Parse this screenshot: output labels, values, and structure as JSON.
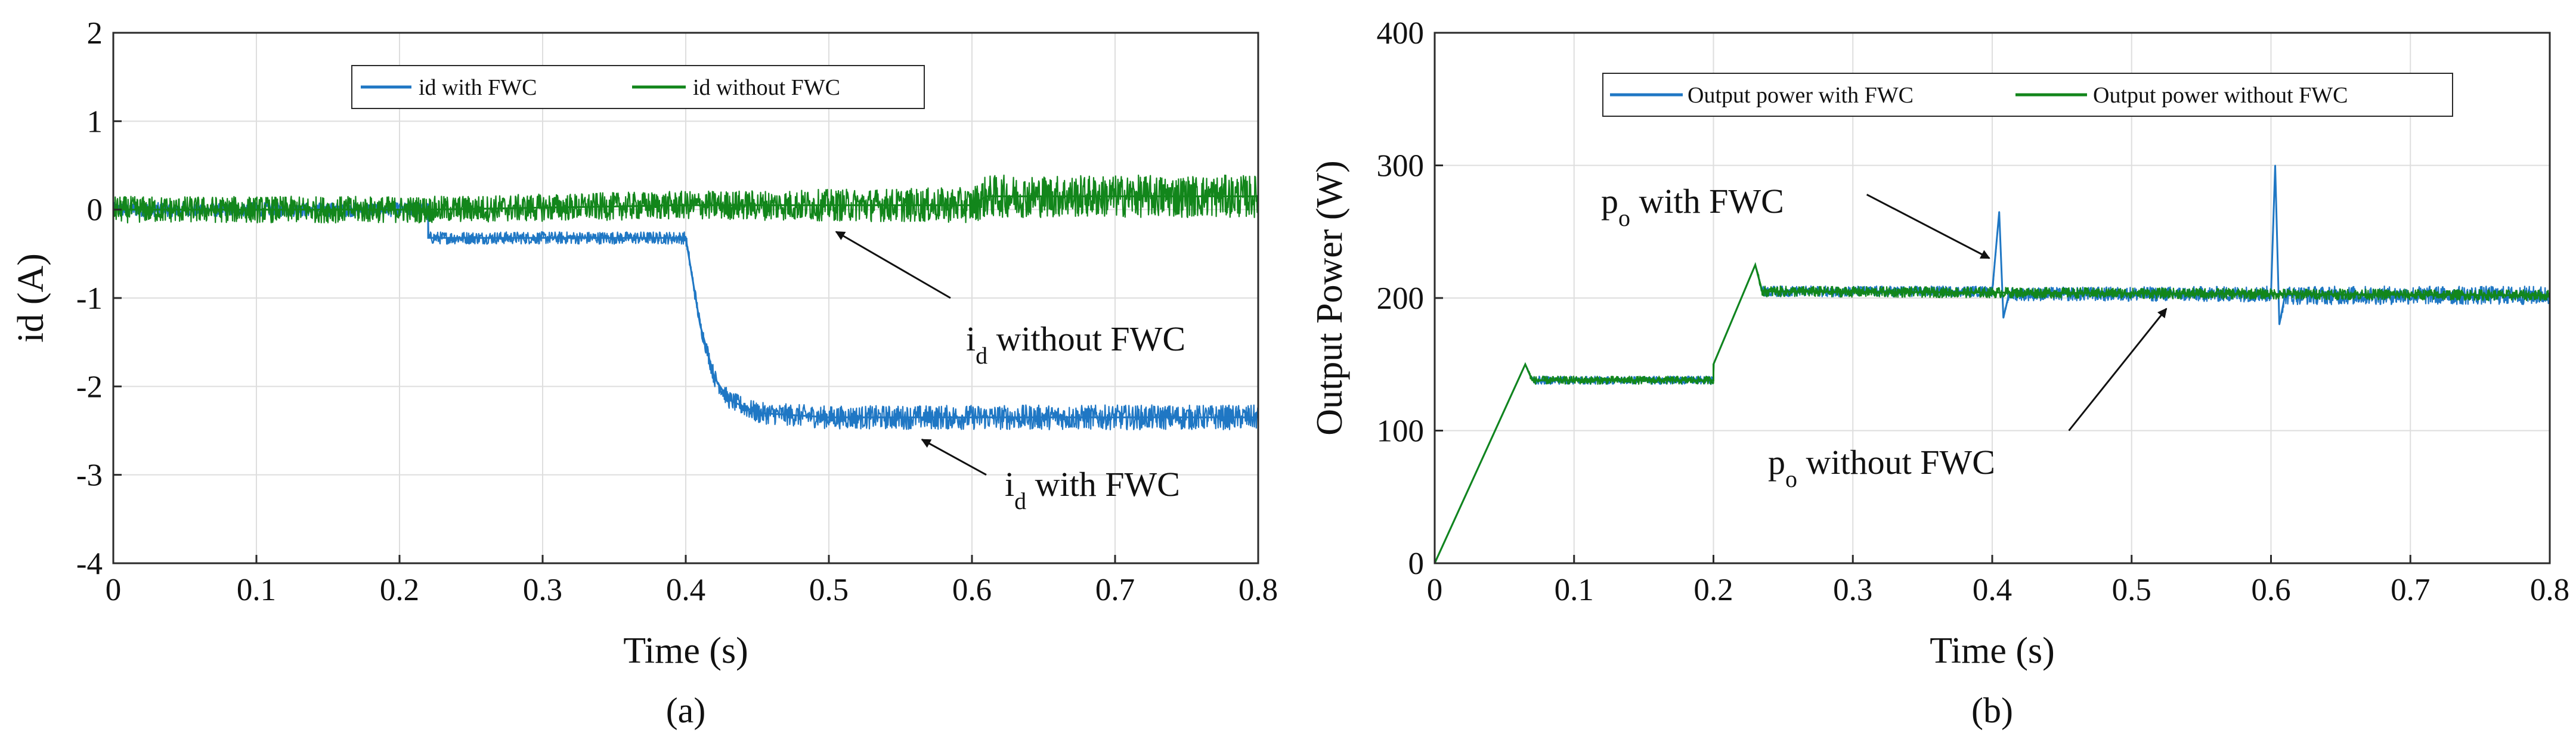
{
  "colors": {
    "with_fwc": "#1f77c4",
    "without_fwc": "#12861b",
    "grid": "#dedede",
    "axis": "#2a2a2a"
  },
  "chart_data": [
    {
      "type": "line",
      "caption": "(a)",
      "xlabel": "Time (s)",
      "ylabel": "id (A)",
      "xlim": [
        0,
        0.8
      ],
      "ylim": [
        -4,
        2
      ],
      "xticks": [
        "0",
        "0.1",
        "0.2",
        "0.3",
        "0.4",
        "0.5",
        "0.6",
        "0.7",
        "0.8"
      ],
      "yticks": [
        "-4",
        "-3",
        "-2",
        "-1",
        "0",
        "1",
        "2"
      ],
      "xtick_values": [
        0,
        0.1,
        0.2,
        0.3,
        0.4,
        0.5,
        0.6,
        0.7,
        0.8
      ],
      "ytick_values": [
        -4,
        -3,
        -2,
        -1,
        0,
        1,
        2
      ],
      "grid": true,
      "legend_position": "top-center",
      "series": [
        {
          "name": "id with FWC",
          "color": "#1f77c4",
          "x": [
            0,
            0.22,
            0.22,
            0.4,
            0.41,
            0.42,
            0.43,
            0.45,
            0.5,
            0.6,
            0.7,
            0.8
          ],
          "y": [
            0,
            0,
            -0.32,
            -0.32,
            -1.3,
            -1.9,
            -2.15,
            -2.3,
            -2.35,
            -2.35,
            -2.35,
            -2.35
          ],
          "noise": [
            0.08,
            0.08,
            0.07,
            0.07,
            0.08,
            0.1,
            0.1,
            0.12,
            0.13,
            0.14,
            0.14,
            0.14
          ]
        },
        {
          "name": "id without FWC",
          "color": "#12861b",
          "x": [
            0,
            0.22,
            0.4,
            0.6,
            0.61,
            0.8
          ],
          "y": [
            0,
            0,
            0.05,
            0.05,
            0.15,
            0.15
          ],
          "noise": [
            0.15,
            0.15,
            0.16,
            0.2,
            0.24,
            0.24
          ]
        }
      ],
      "annotations": [
        {
          "base": "i",
          "sub": "d",
          "text": " without FWC",
          "x_end": 0.505,
          "y_end": -0.25,
          "x_start": 0.585,
          "y_start": -1.0
        },
        {
          "base": "i",
          "sub": "d",
          "text": " with FWC",
          "x_end": 0.565,
          "y_end": -2.6,
          "x_start": 0.61,
          "y_start": -3.0
        }
      ]
    },
    {
      "type": "line",
      "caption": "(b)",
      "xlabel": "Time (s)",
      "ylabel": "Output Power (W)",
      "xlim": [
        0,
        0.8
      ],
      "ylim": [
        0,
        400
      ],
      "xticks": [
        "0",
        "0.1",
        "0.2",
        "0.3",
        "0.4",
        "0.5",
        "0.6",
        "0.7",
        "0.8"
      ],
      "yticks": [
        "0",
        "100",
        "200",
        "300",
        "400"
      ],
      "xtick_values": [
        0,
        0.1,
        0.2,
        0.3,
        0.4,
        0.5,
        0.6,
        0.7,
        0.8
      ],
      "ytick_values": [
        0,
        100,
        200,
        300,
        400
      ],
      "grid": true,
      "legend_position": "top-center",
      "series": [
        {
          "name": "Output power with FWC",
          "color": "#1f77c4",
          "x": [
            0,
            0.065,
            0.07,
            0.2,
            0.2,
            0.23,
            0.235,
            0.4,
            0.405,
            0.408,
            0.412,
            0.6,
            0.603,
            0.606,
            0.61,
            0.8
          ],
          "y": [
            0,
            150,
            138,
            138,
            150,
            225,
            205,
            205,
            265,
            185,
            203,
            203,
            300,
            180,
            202,
            202
          ],
          "noise": [
            0,
            0,
            3,
            3,
            0,
            0,
            4,
            4,
            0,
            0,
            5,
            6,
            0,
            0,
            7,
            7
          ]
        },
        {
          "name": "Output power without FWC",
          "color": "#12861b",
          "x": [
            0,
            0.065,
            0.07,
            0.2,
            0.2,
            0.23,
            0.235,
            0.8
          ],
          "y": [
            0,
            150,
            138,
            138,
            150,
            225,
            205,
            202
          ],
          "noise": [
            0,
            0,
            3,
            3,
            0,
            0,
            4,
            4
          ]
        }
      ],
      "annotations": [
        {
          "base": "p",
          "sub": "o",
          "text": " with FWC",
          "x_end": 0.398,
          "y_end": 230,
          "x_start": 0.31,
          "y_start": 278
        },
        {
          "base": "p",
          "sub": "o",
          "text": " without FWC",
          "x_end": 0.525,
          "y_end": 192,
          "x_start": 0.455,
          "y_start": 100
        }
      ]
    }
  ]
}
